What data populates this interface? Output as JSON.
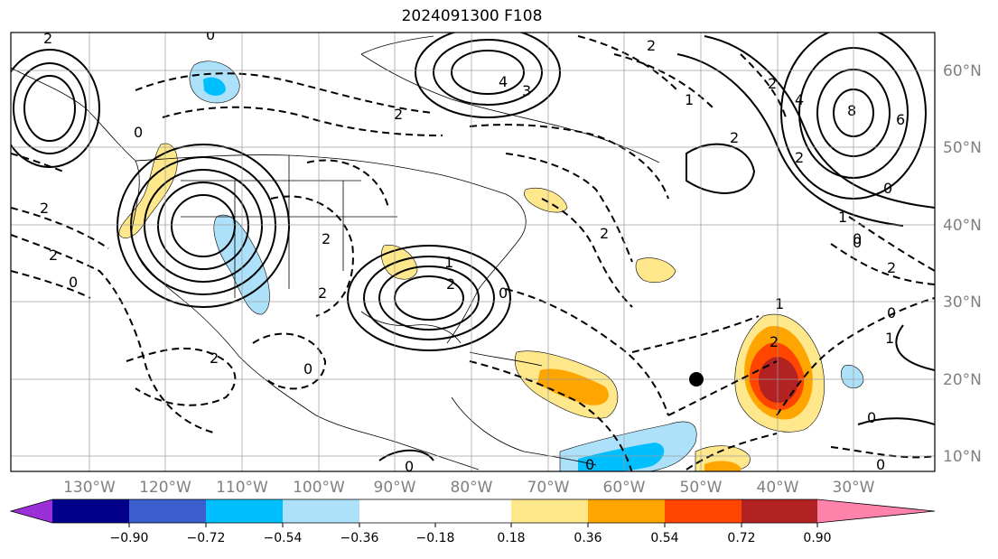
{
  "title": "2024091300 F108",
  "lat_labels": [
    "60°N",
    "50°N",
    "40°N",
    "30°N",
    "20°N",
    "10°N"
  ],
  "lon_labels": [
    "130°W",
    "120°W",
    "110°W",
    "100°W",
    "90°W",
    "80°W",
    "70°W",
    "60°W",
    "50°W",
    "40°W",
    "30°W"
  ],
  "colorbar": {
    "tick_labels": [
      "−0.90",
      "−0.72",
      "−0.54",
      "−0.36",
      "−0.18",
      "0.18",
      "0.36",
      "0.54",
      "0.72",
      "0.90"
    ],
    "colors": [
      "#9b30d9",
      "#00008b",
      "#3a5fcd",
      "#00bfff",
      "#ade1fa",
      "#ffffff",
      "#ffe88c",
      "#ffa500",
      "#ff4500",
      "#b22222",
      "#ff82ab"
    ]
  },
  "contour_labels": [
    "2",
    "0",
    "2",
    "4",
    "3",
    "2",
    "1",
    "2",
    "4",
    "8",
    "6",
    "2",
    "1",
    "0",
    "2",
    "0",
    "0",
    "2",
    "2",
    "0",
    "2",
    "1",
    "2",
    "0",
    "2",
    "0",
    "2",
    "0",
    "2",
    "2",
    "1",
    "0",
    "2",
    "0",
    "1",
    "0",
    "0",
    "0"
  ],
  "legend": {
    "storm_marker": "black-dot"
  }
}
